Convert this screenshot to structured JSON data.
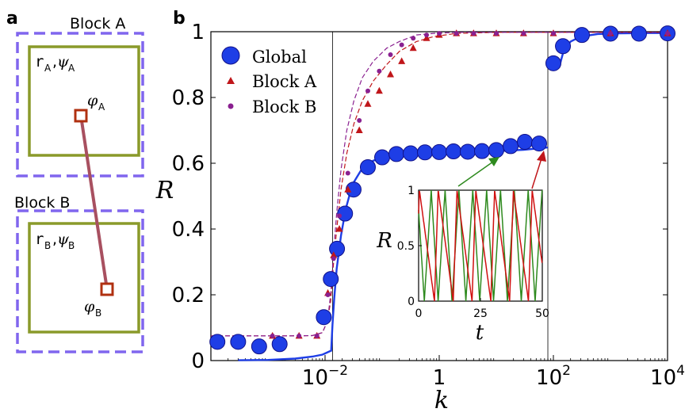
{
  "panel_a": {
    "letter": "a",
    "block_a_label": "Block A",
    "block_b_label": "Block B",
    "r_a": "r",
    "r_a_sub": "A",
    "psi_a": "ψ",
    "psi_a_sub": "A",
    "phi_a": "φ",
    "phi_a_sub": "A",
    "r_b": "r",
    "r_b_sub": "B",
    "psi_b": "ψ",
    "psi_b_sub": "B",
    "phi_b": "φ",
    "phi_b_sub": "B",
    "colors": {
      "dashed_box": "#8066ee",
      "inner_box": "#8a9a2a",
      "node": "#b03010",
      "link": "#a85060"
    }
  },
  "chart_data": [
    {
      "type": "scatter",
      "letter": "b",
      "xlabel": "k",
      "ylabel": "R",
      "x_scale": "log",
      "xlim": [
        0.0001,
        10000
      ],
      "ylim": [
        0,
        1
      ],
      "x_ticks": [
        0.01,
        1,
        100,
        10000
      ],
      "x_tick_labels": [
        {
          "base": "10",
          "exp": "−2"
        },
        {
          "base": "1",
          "exp": ""
        },
        {
          "base": "10",
          "exp": "2"
        },
        {
          "base": "10",
          "exp": "4"
        }
      ],
      "y_ticks": [
        0,
        0.2,
        0.4,
        0.6,
        0.8,
        1
      ],
      "y_tick_labels": [
        "0",
        "0.2",
        "0.4",
        "0.6",
        "0.8",
        "1"
      ],
      "vlines": [
        0.0135,
        80
      ],
      "legend_position": "top-left",
      "series": [
        {
          "name": "Global",
          "marker": "circle",
          "color": "#1e3ee6",
          "edge": "#111188",
          "x": [
            0.00013,
            0.0003,
            0.0007,
            0.0016,
            0.0095,
            0.0126,
            0.0162,
            0.0224,
            0.0316,
            0.0562,
            0.1,
            0.178,
            0.316,
            0.562,
            1.0,
            1.78,
            3.16,
            5.62,
            10,
            17.8,
            31.6,
            56.2,
            100,
            147,
            316,
            1000,
            3160,
            10000
          ],
          "y": [
            0.057,
            0.057,
            0.043,
            0.05,
            0.132,
            0.248,
            0.34,
            0.447,
            0.52,
            0.588,
            0.618,
            0.628,
            0.63,
            0.633,
            0.634,
            0.636,
            0.635,
            0.637,
            0.64,
            0.652,
            0.665,
            0.66,
            0.904,
            0.956,
            0.99,
            0.994,
            0.994,
            0.995
          ]
        },
        {
          "name": "Block A",
          "marker": "triangle",
          "color": "#c0161a",
          "x": [
            0.0012,
            0.0035,
            0.0072,
            0.0112,
            0.0141,
            0.0178,
            0.0251,
            0.0398,
            0.0562,
            0.0891,
            0.14,
            0.22,
            0.35,
            0.6,
            1.0,
            2.0,
            4.0,
            10,
            30,
            100,
            1000,
            10000
          ],
          "y": [
            0.075,
            0.075,
            0.075,
            0.205,
            0.32,
            0.4,
            0.52,
            0.7,
            0.78,
            0.82,
            0.87,
            0.91,
            0.95,
            0.98,
            0.99,
            0.995,
            0.995,
            0.995,
            0.995,
            0.995,
            0.995,
            0.995
          ]
        },
        {
          "name": "Block B",
          "marker": "circle-small",
          "color": "#8a2090",
          "x": [
            0.0012,
            0.0035,
            0.0072,
            0.0112,
            0.0141,
            0.0178,
            0.0251,
            0.0398,
            0.0562,
            0.0891,
            0.14,
            0.22,
            0.35,
            0.6,
            1.0,
            2.0,
            4.0,
            10,
            30,
            100,
            1000,
            10000
          ],
          "y": [
            0.075,
            0.075,
            0.075,
            0.2,
            0.31,
            0.44,
            0.57,
            0.73,
            0.82,
            0.88,
            0.93,
            0.96,
            0.98,
            0.99,
            0.995,
            0.995,
            0.995,
            0.995,
            0.995,
            0.995,
            0.995,
            0.995
          ]
        }
      ],
      "curves": [
        {
          "series": "Global",
          "style": "solid",
          "x": [
            0.0003,
            0.001,
            0.003,
            0.006,
            0.009,
            0.011,
            0.012,
            0.0128,
            0.0135,
            0.0145,
            0.016,
            0.019,
            0.023,
            0.03,
            0.045,
            0.07,
            0.12,
            0.25,
            0.6,
            2,
            8,
            30,
            80
          ],
          "y": [
            0.001,
            0.002,
            0.006,
            0.012,
            0.018,
            0.025,
            0.028,
            0.03,
            0.11,
            0.19,
            0.28,
            0.38,
            0.46,
            0.535,
            0.585,
            0.608,
            0.62,
            0.628,
            0.632,
            0.634,
            0.636,
            0.641,
            0.648
          ]
        },
        {
          "series": "Global",
          "style": "solid",
          "x": [
            130,
            150,
            200,
            300,
            600,
            1500,
            5000,
            10000
          ],
          "y": [
            0.9,
            0.94,
            0.97,
            0.985,
            0.993,
            0.995,
            0.996,
            0.996
          ]
        },
        {
          "series": "Block A",
          "style": "dashed",
          "x": [
            0.0001,
            0.002,
            0.006,
            0.009,
            0.011,
            0.0125,
            0.014,
            0.016,
            0.019,
            0.024,
            0.032,
            0.045,
            0.07,
            0.12,
            0.2,
            0.4,
            0.8,
            2,
            10,
            10000
          ],
          "y": [
            0.075,
            0.075,
            0.076,
            0.085,
            0.12,
            0.18,
            0.29,
            0.4,
            0.52,
            0.63,
            0.72,
            0.79,
            0.85,
            0.9,
            0.94,
            0.97,
            0.985,
            0.995,
            0.998,
            0.998
          ]
        },
        {
          "series": "Block B",
          "style": "dashed",
          "x": [
            0.0001,
            0.002,
            0.006,
            0.009,
            0.011,
            0.0125,
            0.014,
            0.016,
            0.019,
            0.024,
            0.032,
            0.045,
            0.07,
            0.12,
            0.2,
            0.4,
            0.8,
            2,
            10,
            10000
          ],
          "y": [
            0.075,
            0.075,
            0.076,
            0.085,
            0.12,
            0.2,
            0.32,
            0.45,
            0.58,
            0.7,
            0.79,
            0.86,
            0.91,
            0.95,
            0.97,
            0.99,
            0.995,
            0.998,
            0.998,
            0.998
          ]
        }
      ]
    },
    {
      "type": "line",
      "role": "inset",
      "xlabel": "t",
      "ylabel": "R",
      "xlim": [
        0,
        50
      ],
      "ylim": [
        0,
        1
      ],
      "x_ticks": [
        0,
        25,
        50
      ],
      "x_tick_labels": [
        "0",
        "25",
        "50"
      ],
      "y_ticks": [
        0,
        0.5,
        1
      ],
      "y_tick_labels": [
        "0",
        "0.5",
        "1"
      ],
      "series": [
        {
          "name": "",
          "color": "#2e8a1e",
          "period": 5.6,
          "phase": 0.5,
          "shape": "triangle"
        },
        {
          "name": "",
          "color": "#d01010",
          "period": 7.6,
          "phase": 1.2,
          "shape": "sawtooth"
        }
      ]
    }
  ]
}
